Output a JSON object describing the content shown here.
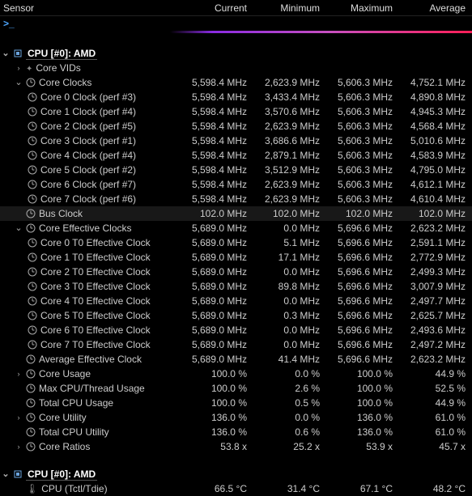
{
  "header": {
    "sensor": "Sensor",
    "current": "Current",
    "minimum": "Minimum",
    "maximum": "Maximum",
    "average": "Average"
  },
  "prompt": ">_",
  "cpu_section": {
    "label": "CPU [#0]: AMD"
  },
  "core_vids_label": "Core VIDs",
  "core_clocks": {
    "label": "Core Clocks",
    "current": "5,598.4 MHz",
    "min": "2,623.9 MHz",
    "max": "5,606.3 MHz",
    "avg": "4,752.1 MHz",
    "rows": [
      {
        "label": "Core 0 Clock (perf #3)",
        "current": "5,598.4 MHz",
        "min": "3,433.4 MHz",
        "max": "5,606.3 MHz",
        "avg": "4,890.8 MHz"
      },
      {
        "label": "Core 1 Clock (perf #4)",
        "current": "5,598.4 MHz",
        "min": "3,570.6 MHz",
        "max": "5,606.3 MHz",
        "avg": "4,945.3 MHz"
      },
      {
        "label": "Core 2 Clock (perf #5)",
        "current": "5,598.4 MHz",
        "min": "2,623.9 MHz",
        "max": "5,606.3 MHz",
        "avg": "4,568.4 MHz"
      },
      {
        "label": "Core 3 Clock (perf #1)",
        "current": "5,598.4 MHz",
        "min": "3,686.6 MHz",
        "max": "5,606.3 MHz",
        "avg": "5,010.6 MHz"
      },
      {
        "label": "Core 4 Clock (perf #4)",
        "current": "5,598.4 MHz",
        "min": "2,879.1 MHz",
        "max": "5,606.3 MHz",
        "avg": "4,583.9 MHz"
      },
      {
        "label": "Core 5 Clock (perf #2)",
        "current": "5,598.4 MHz",
        "min": "3,512.9 MHz",
        "max": "5,606.3 MHz",
        "avg": "4,795.0 MHz"
      },
      {
        "label": "Core 6 Clock (perf #7)",
        "current": "5,598.4 MHz",
        "min": "2,623.9 MHz",
        "max": "5,606.3 MHz",
        "avg": "4,612.1 MHz"
      },
      {
        "label": "Core 7 Clock (perf #6)",
        "current": "5,598.4 MHz",
        "min": "2,623.9 MHz",
        "max": "5,606.3 MHz",
        "avg": "4,610.4 MHz"
      }
    ]
  },
  "bus_clock": {
    "label": "Bus Clock",
    "current": "102.0 MHz",
    "min": "102.0 MHz",
    "max": "102.0 MHz",
    "avg": "102.0 MHz"
  },
  "eff_clocks": {
    "label": "Core Effective Clocks",
    "current": "5,689.0 MHz",
    "min": "0.0 MHz",
    "max": "5,696.6 MHz",
    "avg": "2,623.2 MHz",
    "rows": [
      {
        "label": "Core 0 T0 Effective Clock",
        "current": "5,689.0 MHz",
        "min": "5.1 MHz",
        "max": "5,696.6 MHz",
        "avg": "2,591.1 MHz"
      },
      {
        "label": "Core 1 T0 Effective Clock",
        "current": "5,689.0 MHz",
        "min": "17.1 MHz",
        "max": "5,696.6 MHz",
        "avg": "2,772.9 MHz"
      },
      {
        "label": "Core 2 T0 Effective Clock",
        "current": "5,689.0 MHz",
        "min": "0.0 MHz",
        "max": "5,696.6 MHz",
        "avg": "2,499.3 MHz"
      },
      {
        "label": "Core 3 T0 Effective Clock",
        "current": "5,689.0 MHz",
        "min": "89.8 MHz",
        "max": "5,696.6 MHz",
        "avg": "3,007.9 MHz"
      },
      {
        "label": "Core 4 T0 Effective Clock",
        "current": "5,689.0 MHz",
        "min": "0.0 MHz",
        "max": "5,696.6 MHz",
        "avg": "2,497.7 MHz"
      },
      {
        "label": "Core 5 T0 Effective Clock",
        "current": "5,689.0 MHz",
        "min": "0.3 MHz",
        "max": "5,696.6 MHz",
        "avg": "2,625.7 MHz"
      },
      {
        "label": "Core 6 T0 Effective Clock",
        "current": "5,689.0 MHz",
        "min": "0.0 MHz",
        "max": "5,696.6 MHz",
        "avg": "2,493.6 MHz"
      },
      {
        "label": "Core 7 T0 Effective Clock",
        "current": "5,689.0 MHz",
        "min": "0.0 MHz",
        "max": "5,696.6 MHz",
        "avg": "2,497.2 MHz"
      }
    ]
  },
  "avg_eff_clock": {
    "label": "Average Effective Clock",
    "current": "5,689.0 MHz",
    "min": "41.4 MHz",
    "max": "5,696.6 MHz",
    "avg": "2,623.2 MHz"
  },
  "misc": [
    {
      "label": "Core Usage",
      "current": "100.0 %",
      "min": "0.0 %",
      "max": "100.0 %",
      "avg": "44.9 %",
      "chev": "right"
    },
    {
      "label": "Max CPU/Thread Usage",
      "current": "100.0 %",
      "min": "2.6 %",
      "max": "100.0 %",
      "avg": "52.5 %",
      "chev": "none"
    },
    {
      "label": "Total CPU Usage",
      "current": "100.0 %",
      "min": "0.5 %",
      "max": "100.0 %",
      "avg": "44.9 %",
      "chev": "none"
    },
    {
      "label": "Core Utility",
      "current": "136.0 %",
      "min": "0.0 %",
      "max": "136.0 %",
      "avg": "61.0 %",
      "chev": "right"
    },
    {
      "label": "Total CPU Utility",
      "current": "136.0 %",
      "min": "0.6 %",
      "max": "136.0 %",
      "avg": "61.0 %",
      "chev": "none"
    },
    {
      "label": "Core Ratios",
      "current": "53.8 x",
      "min": "25.2 x",
      "max": "53.9 x",
      "avg": "45.7 x",
      "chev": "right"
    }
  ],
  "cpu_section2": {
    "label": "CPU [#0]: AMD"
  },
  "temp_row": {
    "label": "CPU (Tctl/Tdie)",
    "current": "66.5 °C",
    "min": "31.4 °C",
    "max": "67.1 °C",
    "avg": "48.2 °C"
  }
}
